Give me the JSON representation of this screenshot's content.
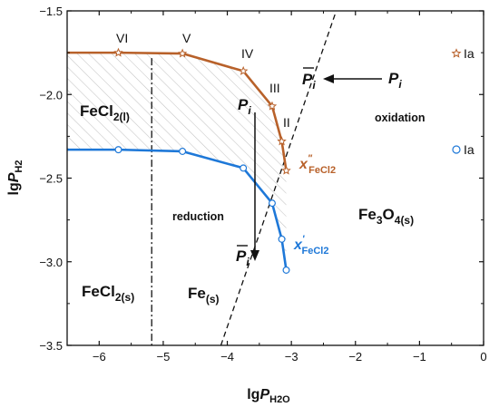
{
  "chart_data": {
    "type": "line",
    "x_axis": {
      "label_main": "lg",
      "label_var": "P",
      "label_sub": "H2O",
      "range": [
        -6.5,
        0
      ],
      "ticks": [
        -6,
        -5,
        -4,
        -3,
        -2,
        -1,
        0
      ],
      "tick_labels": [
        "−6",
        "−5",
        "−4",
        "−3",
        "−2",
        "−1",
        "0"
      ]
    },
    "y_axis": {
      "label_main": "lg",
      "label_var": "P",
      "label_sub": "H2",
      "range": [
        -3.5,
        -1.5
      ],
      "ticks": [
        -3.5,
        -3.0,
        -2.5,
        -2.0,
        -1.5
      ],
      "tick_labels": [
        "−3.5",
        "−3.0",
        "−2.5",
        "−2.0",
        "−1.5"
      ]
    },
    "series": [
      {
        "name": "Ia",
        "marker": "star",
        "color": "#b8612a",
        "x": [
          -5.7,
          -4.7,
          -3.75,
          -3.3,
          -3.15,
          -3.08
        ],
        "y": [
          -1.75,
          -1.755,
          -1.86,
          -2.07,
          -2.28,
          -2.455
        ]
      },
      {
        "name": "Ia",
        "marker": "circle",
        "color": "#1e78d8",
        "x": [
          -5.7,
          -4.7,
          -3.75,
          -3.3,
          -3.15,
          -3.08
        ],
        "y": [
          -2.33,
          -2.34,
          -2.44,
          -2.65,
          -2.865,
          -3.05
        ]
      }
    ],
    "hatched_region_color": "#c8c8c8",
    "vertical_dashdot_x": -5.18,
    "dashed_line": {
      "x": [
        -4.1,
        -2.3
      ],
      "y": [
        -3.5,
        -1.5
      ]
    },
    "regions": {
      "fecl2_liquid": {
        "main": "FeCl",
        "sub": "2(l)"
      },
      "fecl2_solid": {
        "main": "FeCl",
        "sub": "2(s)"
      },
      "fe_solid": {
        "main": "Fe",
        "sub": "(s)"
      },
      "fe3o4": {
        "a": "Fe",
        "b": "3",
        "c": "O",
        "d": "4(s)"
      }
    },
    "annotations": {
      "reduction": "reduction",
      "oxidation": "oxidation",
      "stages": [
        "VI",
        "V",
        "IV",
        "III",
        "II"
      ],
      "p_i": {
        "main": "P",
        "sub": "i"
      },
      "x_double_prime": {
        "main": "x",
        "sup": "\"",
        "sub": "FeCl2"
      },
      "x_prime": {
        "main": "x",
        "sup": "'",
        "sub": "FeCl2"
      }
    }
  }
}
